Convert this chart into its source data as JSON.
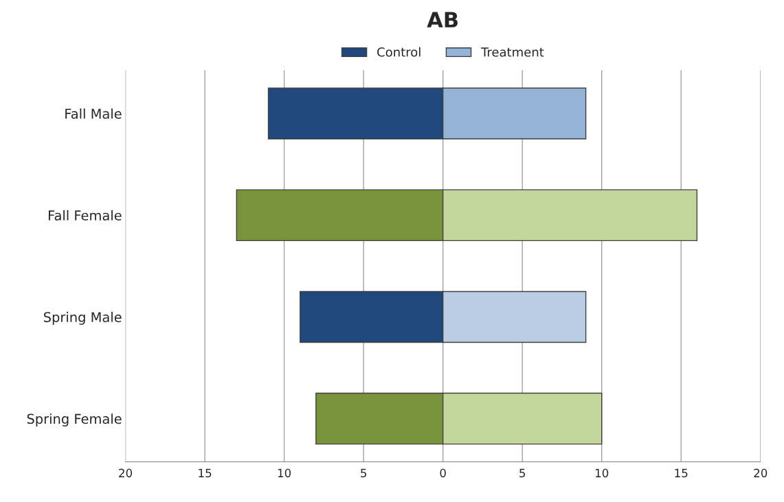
{
  "chart_data": {
    "type": "bar",
    "orientation": "horizontal",
    "title": "AB",
    "categories": [
      "Fall Male",
      "Fall Female",
      "Spring Male",
      "Spring Female"
    ],
    "series": [
      {
        "name": "Control",
        "colors": [
          "#1f497d",
          "#77933c",
          "#1f497d",
          "#77933c"
        ],
        "values": [
          -11,
          -13,
          -9,
          -8
        ]
      },
      {
        "name": "Treatment",
        "colors": [
          "#95b3d7",
          "#c3d69b",
          "#b9cde5",
          "#c3d69b"
        ],
        "values": [
          9,
          16,
          9,
          10
        ]
      }
    ],
    "xlim": [
      -20,
      20
    ],
    "xticks": [
      {
        "value": -20,
        "label": "20"
      },
      {
        "value": -15,
        "label": "15"
      },
      {
        "value": -10,
        "label": "10"
      },
      {
        "value": -5,
        "label": "5"
      },
      0,
      5,
      10,
      15,
      20
    ],
    "stacked": true,
    "grid": "x",
    "legend": "top"
  }
}
